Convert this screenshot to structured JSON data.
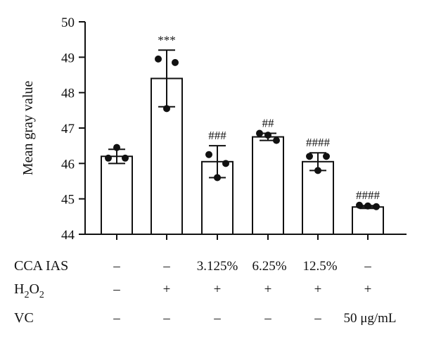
{
  "chart_data": {
    "type": "bar",
    "ylabel": "Mean gray value",
    "ylim": [
      44,
      50
    ],
    "yticks": [
      "44",
      "45",
      "46",
      "47",
      "48",
      "49",
      "50"
    ],
    "grid": false,
    "bars": [
      {
        "value": 46.2,
        "error": 0.2,
        "points": [
          46.15,
          46.45,
          46.15
        ],
        "annotation": ""
      },
      {
        "value": 48.4,
        "error": 0.8,
        "points": [
          48.95,
          47.55,
          48.85
        ],
        "annotation": "***"
      },
      {
        "value": 46.05,
        "error": 0.45,
        "points": [
          46.25,
          45.6,
          46.0
        ],
        "annotation": "###"
      },
      {
        "value": 46.75,
        "error": 0.1,
        "points": [
          46.85,
          46.8,
          46.65
        ],
        "annotation": "##"
      },
      {
        "value": 46.05,
        "error": 0.25,
        "points": [
          46.2,
          45.8,
          46.2
        ],
        "annotation": "####"
      },
      {
        "value": 44.77,
        "error": 0.04,
        "points": [
          44.82,
          44.8,
          44.78
        ],
        "annotation": "####"
      }
    ],
    "conditions": [
      {
        "label": "CCA IAS",
        "values": [
          "–",
          "–",
          "3.125%",
          "6.25%",
          "12.5%",
          "–"
        ]
      },
      {
        "label_main": "H",
        "label_sub1": "2",
        "label_mid": "O",
        "label_sub2": "2",
        "values": [
          "–",
          "+",
          "+",
          "+",
          "+",
          "+"
        ]
      },
      {
        "label": "VC",
        "values": [
          "–",
          "–",
          "–",
          "–",
          "–",
          "50 μg/mL"
        ]
      }
    ],
    "colors": {
      "bar_fill": "#ffffff",
      "stroke": "#111111",
      "dot": "#111111"
    }
  }
}
